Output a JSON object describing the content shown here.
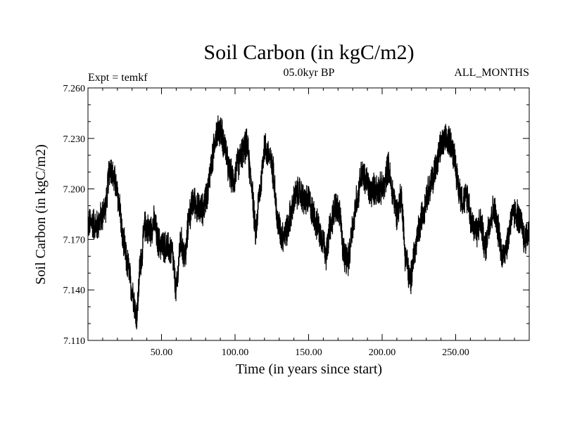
{
  "chart_data": {
    "type": "line",
    "title": "Soil Carbon (in kgC/m2)",
    "subtitle_left": "Expt = temkf",
    "subtitle_center": "05.0kyr BP",
    "subtitle_right": "ALL_MONTHS",
    "xlabel": "Time (in years since start)",
    "ylabel": "Soil Carbon (in kgC/m2)",
    "xlim": [
      0,
      300
    ],
    "ylim": [
      7.11,
      7.26
    ],
    "x_ticks": [
      {
        "value": 50,
        "label": "50.00"
      },
      {
        "value": 100,
        "label": "100.00"
      },
      {
        "value": 150,
        "label": "150.00"
      },
      {
        "value": 200,
        "label": "200.00"
      },
      {
        "value": 250,
        "label": "250.00"
      }
    ],
    "y_ticks": [
      {
        "value": 7.11,
        "label": "7.110"
      },
      {
        "value": 7.14,
        "label": "7.140"
      },
      {
        "value": 7.17,
        "label": "7.170"
      },
      {
        "value": 7.2,
        "label": "7.200"
      },
      {
        "value": 7.23,
        "label": "7.230"
      },
      {
        "value": 7.26,
        "label": "7.260"
      }
    ],
    "grid": false,
    "series": [
      {
        "name": "Soil Carbon",
        "color": "#000000",
        "amplitude": 0.011,
        "x": [
          0,
          3,
          6,
          9,
          12,
          15,
          18,
          21,
          24,
          27,
          30,
          33,
          36,
          39,
          42,
          45,
          48,
          51,
          54,
          57,
          60,
          63,
          66,
          69,
          72,
          75,
          78,
          81,
          84,
          87,
          90,
          93,
          96,
          99,
          102,
          105,
          108,
          111,
          114,
          117,
          120,
          123,
          126,
          129,
          132,
          135,
          138,
          141,
          144,
          147,
          150,
          153,
          156,
          159,
          162,
          165,
          168,
          171,
          174,
          177,
          180,
          183,
          186,
          189,
          192,
          195,
          198,
          201,
          204,
          207,
          210,
          213,
          216,
          219,
          222,
          225,
          228,
          231,
          234,
          237,
          240,
          243,
          246,
          249,
          252,
          255,
          258,
          261,
          264,
          267,
          270,
          273,
          276,
          279,
          282,
          285,
          288,
          291,
          294,
          297,
          300
        ],
        "y": [
          7.179,
          7.18,
          7.178,
          7.183,
          7.19,
          7.213,
          7.205,
          7.193,
          7.168,
          7.155,
          7.14,
          7.125,
          7.158,
          7.178,
          7.175,
          7.18,
          7.168,
          7.166,
          7.165,
          7.163,
          7.14,
          7.168,
          7.16,
          7.185,
          7.193,
          7.188,
          7.188,
          7.197,
          7.215,
          7.233,
          7.235,
          7.226,
          7.21,
          7.205,
          7.215,
          7.222,
          7.226,
          7.205,
          7.175,
          7.2,
          7.225,
          7.22,
          7.21,
          7.18,
          7.172,
          7.175,
          7.185,
          7.196,
          7.198,
          7.193,
          7.193,
          7.186,
          7.178,
          7.172,
          7.162,
          7.178,
          7.19,
          7.186,
          7.16,
          7.158,
          7.178,
          7.195,
          7.208,
          7.205,
          7.198,
          7.2,
          7.2,
          7.2,
          7.213,
          7.198,
          7.186,
          7.195,
          7.16,
          7.145,
          7.162,
          7.175,
          7.188,
          7.198,
          7.205,
          7.215,
          7.225,
          7.228,
          7.229,
          7.22,
          7.2,
          7.193,
          7.196,
          7.18,
          7.175,
          7.18,
          7.165,
          7.18,
          7.188,
          7.175,
          7.16,
          7.168,
          7.183,
          7.186,
          7.18,
          7.17,
          7.175
        ]
      }
    ]
  }
}
